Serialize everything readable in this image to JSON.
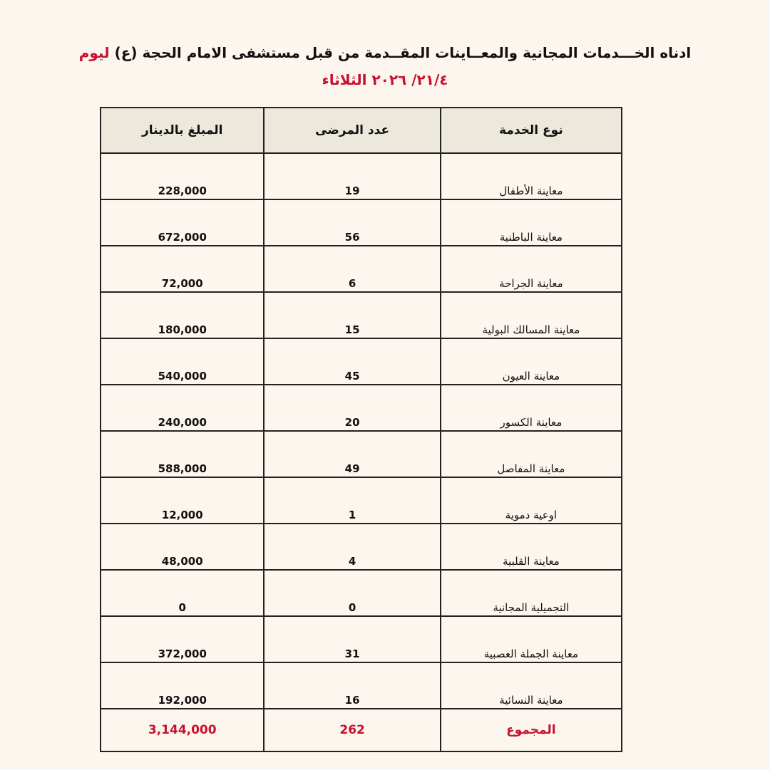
{
  "header": {
    "title_main": "ادناه الخـــدمات المجانية والمعــاينات  المقــدمة من قبل مستشفى الامام الحجة (ع)",
    "title_day": "ليوم",
    "date": "٢١/٤/ ٢٠٢٦ الثلاثاء"
  },
  "table": {
    "columns": [
      "نوع الخدمة",
      "عدد المرضى",
      "المبلغ بالدينار"
    ],
    "rows": [
      [
        "معاينة الأطفال",
        "19",
        "228,000"
      ],
      [
        "معاينة الباطنية",
        "56",
        "672,000"
      ],
      [
        "معاينة الجراحة",
        "6",
        "72,000"
      ],
      [
        "معاينة المسالك البولية",
        "15",
        "180,000"
      ],
      [
        "معاينة العيون",
        "45",
        "540,000"
      ],
      [
        "معاينة الكسور",
        "20",
        "240,000"
      ],
      [
        "معاينة المفاصل",
        "49",
        "588,000"
      ],
      [
        "اوعية دموية",
        "1",
        "12,000"
      ],
      [
        "معاينة القلبية",
        "4",
        "48,000"
      ],
      [
        "التجميلية المجانية",
        "0",
        "0"
      ],
      [
        "معاينة الجملة العصبية",
        "31",
        "372,000"
      ],
      [
        "معاينة النسائية",
        "16",
        "192,000"
      ]
    ],
    "total": [
      "المجموع",
      "262",
      "3,144,000"
    ]
  }
}
